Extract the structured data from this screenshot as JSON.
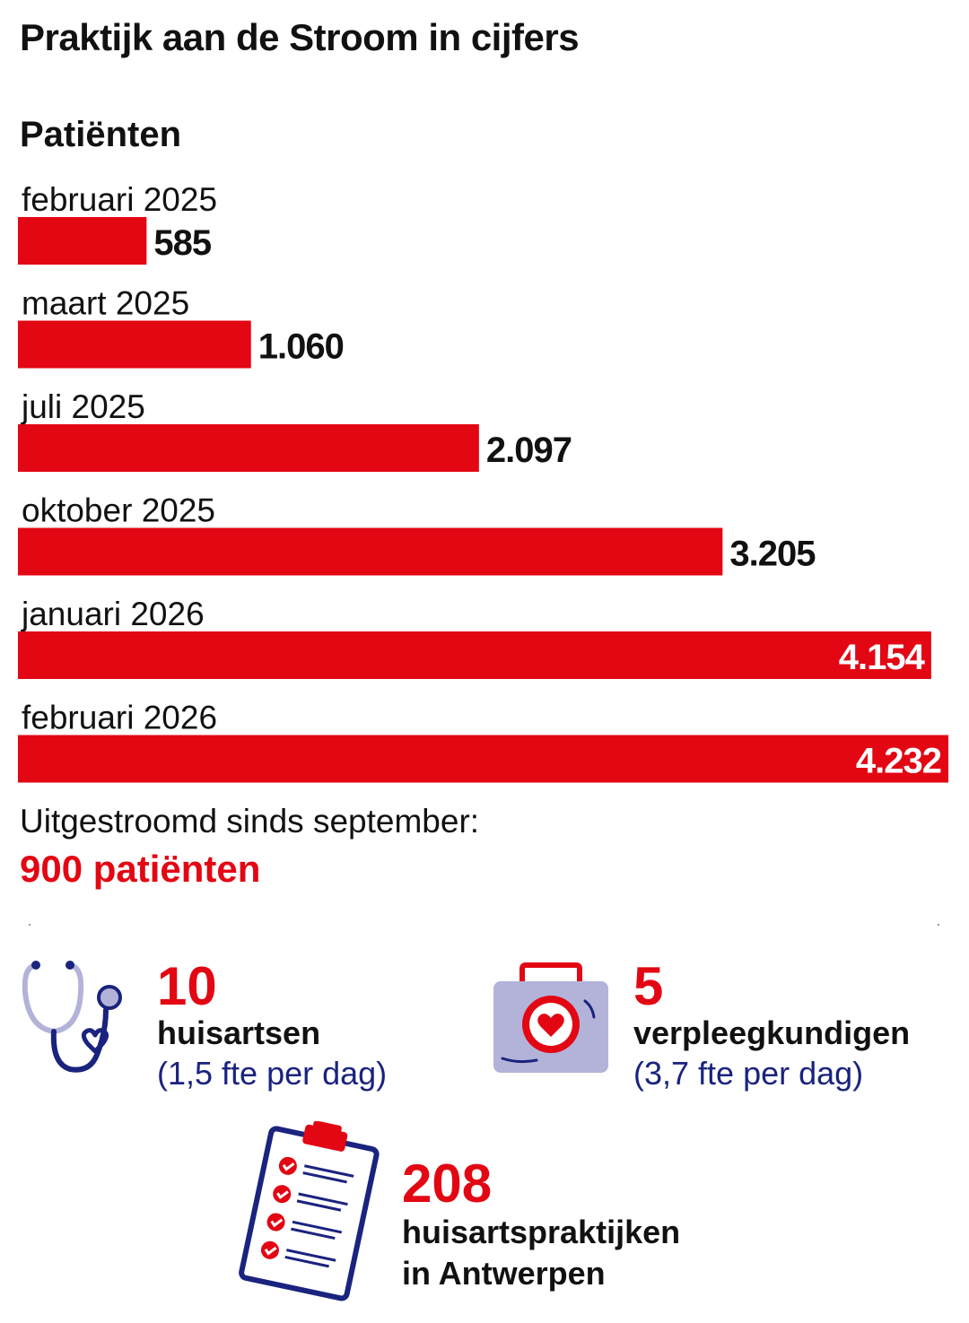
{
  "title": "Praktijk aan de Stroom in cijfers",
  "section_title": "Patiënten",
  "chart_data": {
    "type": "bar",
    "orientation": "horizontal",
    "categories": [
      "februari 2025",
      "maart 2025",
      "juli 2025",
      "oktober 2025",
      "januari 2026",
      "februari 2026"
    ],
    "values": [
      585,
      1060,
      2097,
      3205,
      4154,
      4232
    ],
    "value_labels": [
      "585",
      "1.060",
      "2.097",
      "3.205",
      "4.154",
      "4.232"
    ],
    "xlim": [
      0,
      4232
    ],
    "bar_color": "#e30613",
    "grid": false
  },
  "outflow": {
    "text": "Uitgestroomd sinds september:",
    "value": "900 patiënten"
  },
  "stats": {
    "doctors": {
      "number": "10",
      "label": "huisartsen",
      "sub": "(1,5 fte per dag)",
      "icon": "stethoscope-icon"
    },
    "nurses": {
      "number": "5",
      "label": "verpleegkundigen",
      "sub": "(3,7 fte per dag)",
      "icon": "medical-kit-icon"
    },
    "practices": {
      "number": "208",
      "label_line1": "huisartspraktijken",
      "label_line2": "in Antwerpen",
      "icon": "clipboard-checklist-icon"
    }
  },
  "colors": {
    "accent": "#e30613",
    "navy": "#1a237e",
    "lavender": "#b3b3d9"
  }
}
